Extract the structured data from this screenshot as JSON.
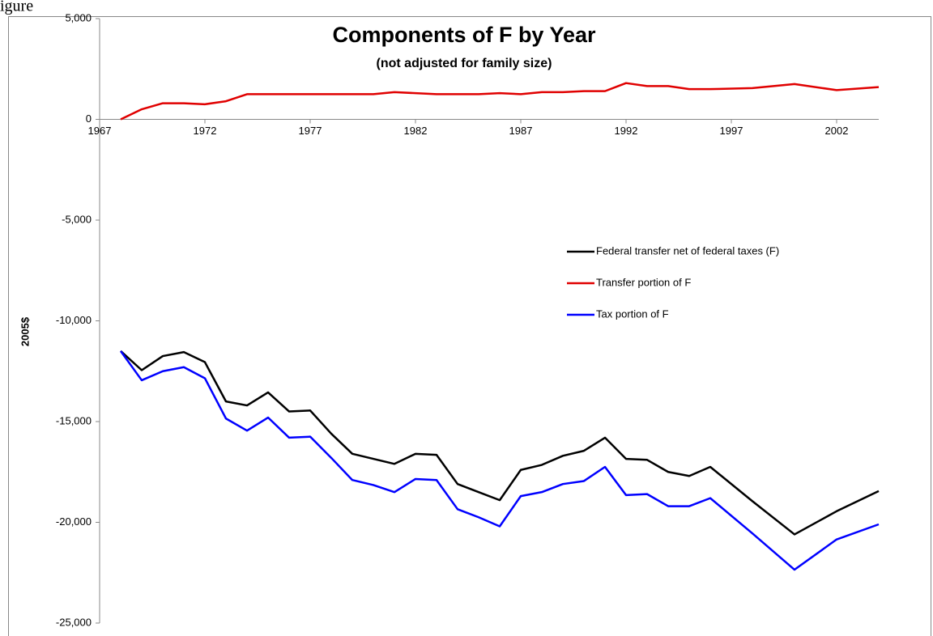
{
  "caption": "igure",
  "chart_data": {
    "type": "line",
    "title": "Components of F by Year",
    "subtitle": "(not adjusted for family size)",
    "y_label": "2005$",
    "x": [
      1968,
      1969,
      1970,
      1971,
      1972,
      1973,
      1974,
      1975,
      1976,
      1977,
      1978,
      1979,
      1980,
      1981,
      1982,
      1983,
      1984,
      1985,
      1986,
      1987,
      1988,
      1989,
      1990,
      1991,
      1992,
      1993,
      1994,
      1995,
      1996,
      1998,
      2000,
      2002,
      2004
    ],
    "series": [
      {
        "name": "Federal transfer net of federal taxes (F)",
        "color": "#000000",
        "values": [
          -11500,
          -12450,
          -11750,
          -11550,
          -12050,
          -14000,
          -14200,
          -13550,
          -14500,
          -14450,
          -15600,
          -16600,
          -16850,
          -17100,
          -16600,
          -16650,
          -18100,
          -18500,
          -18900,
          -17400,
          -17150,
          -16700,
          -16450,
          -15800,
          -16850,
          -16900,
          -17500,
          -17700,
          -17250,
          -18950,
          -20600,
          -19450,
          -18450
        ]
      },
      {
        "name": "Transfer portion of F",
        "color": "#e00000",
        "values": [
          0,
          500,
          800,
          800,
          750,
          900,
          1250,
          1250,
          1250,
          1250,
          1250,
          1250,
          1250,
          1350,
          1300,
          1250,
          1250,
          1250,
          1300,
          1250,
          1350,
          1350,
          1400,
          1400,
          1800,
          1650,
          1650,
          1500,
          1500,
          1550,
          1750,
          1450,
          1600
        ]
      },
      {
        "name": "Tax portion of F",
        "color": "#0000ff",
        "values": [
          -11500,
          -12950,
          -12500,
          -12300,
          -12850,
          -14850,
          -15450,
          -14800,
          -15800,
          -15750,
          -16800,
          -17900,
          -18150,
          -18500,
          -17850,
          -17900,
          -19350,
          -19750,
          -20200,
          -18700,
          -18500,
          -18100,
          -17950,
          -17250,
          -18650,
          -18600,
          -19200,
          -19200,
          -18800,
          -20550,
          -22350,
          -20850,
          -20100
        ]
      }
    ],
    "xlim": [
      1967,
      2004
    ],
    "xticks": [
      1967,
      1972,
      1977,
      1982,
      1987,
      1992,
      1997,
      2002
    ],
    "ylim": [
      -25000,
      5000
    ],
    "yticks": [
      {
        "value": -25000,
        "label": "-25,000"
      },
      {
        "value": -20000,
        "label": "-20,000"
      },
      {
        "value": -15000,
        "label": "-15,000"
      },
      {
        "value": -10000,
        "label": "-10,000"
      },
      {
        "value": -5000,
        "label": "-5,000"
      },
      0,
      {
        "value": 5000,
        "label": "5,000"
      }
    ],
    "grid": false,
    "legend": "center-right"
  }
}
